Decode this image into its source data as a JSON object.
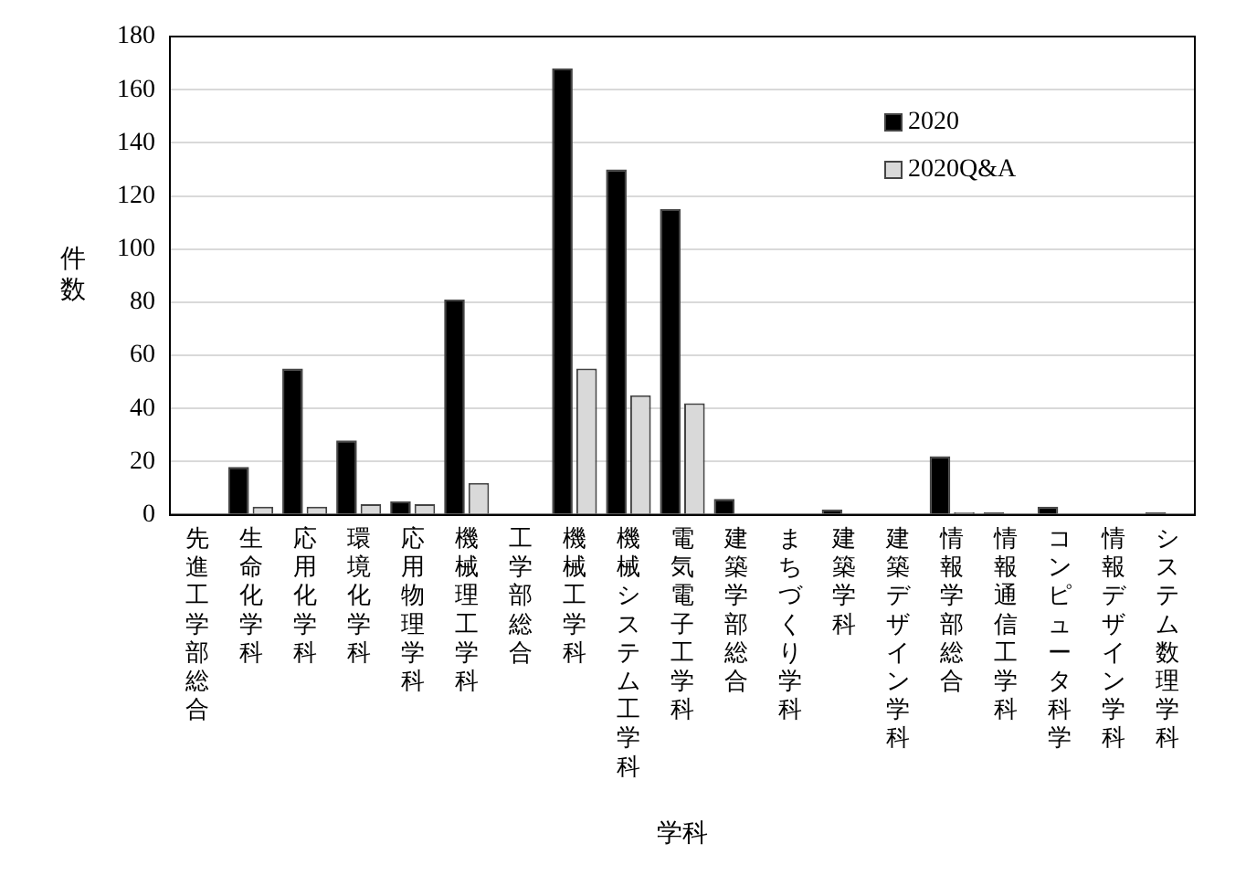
{
  "chart_data": {
    "type": "bar",
    "xlabel": "学科",
    "ylabel": "件数",
    "categories": [
      "先進工学部総合",
      "生命化学科",
      "応用化学科",
      "環境化学科",
      "応用物理学科",
      "機械理工学科",
      "工学部総合",
      "機械工学科",
      "機械システム工学科",
      "電気電子工学科",
      "建築学部総合",
      "まちづくり学科",
      "建築学科",
      "建築デザイン学科",
      "情報学部総合",
      "情報通信工学科",
      "コンピュータ科学",
      "情報デザイン学科",
      "システム数理学科"
    ],
    "series": [
      {
        "name": "2020",
        "color": "#000000",
        "values": [
          0,
          18,
          55,
          28,
          5,
          81,
          0,
          168,
          130,
          115,
          6,
          0,
          2,
          0,
          22,
          1,
          3,
          0,
          1
        ]
      },
      {
        "name": "2020Q&A",
        "color": "#d9d9d9",
        "values": [
          0,
          3,
          3,
          4,
          4,
          12,
          0,
          55,
          45,
          42,
          0,
          0,
          0,
          0,
          1,
          0,
          0,
          0,
          0
        ]
      }
    ],
    "ylim": [
      0,
      180
    ],
    "yticks": [
      0,
      20,
      40,
      60,
      80,
      100,
      120,
      140,
      160,
      180
    ],
    "grid": "y",
    "legend": "top right"
  }
}
